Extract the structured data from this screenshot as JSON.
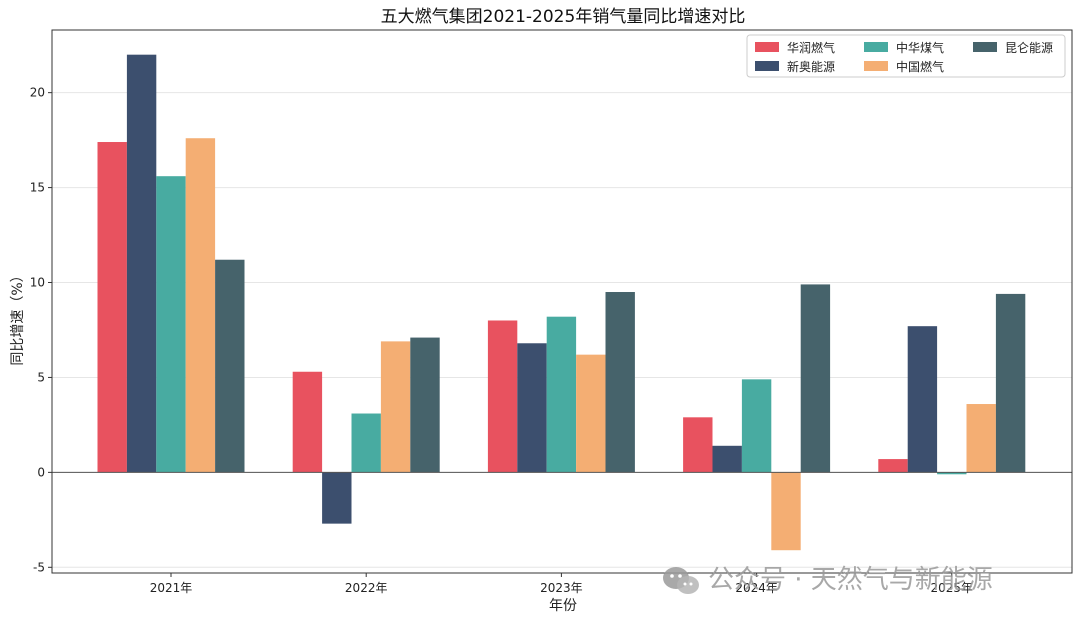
{
  "chart_data": {
    "type": "bar",
    "title": "五大燃气集团2021-2025年销气量同比增速对比",
    "xlabel": "年份",
    "ylabel": "同比增速（%）",
    "categories": [
      "2021年",
      "2022年",
      "2023年",
      "2024年",
      "2025年"
    ],
    "series": [
      {
        "name": "华润燃气",
        "color": "#e8525f",
        "values": [
          17.4,
          5.3,
          8.0,
          2.9,
          0.7
        ]
      },
      {
        "name": "新奥能源",
        "color": "#3c4f6e",
        "values": [
          22.0,
          -2.7,
          6.8,
          1.4,
          7.7
        ]
      },
      {
        "name": "中华煤气",
        "color": "#48aba1",
        "values": [
          15.6,
          3.1,
          8.2,
          4.9,
          -0.1
        ]
      },
      {
        "name": "中国燃气",
        "color": "#f4ae73",
        "values": [
          17.6,
          6.9,
          6.2,
          -4.1,
          3.6
        ]
      },
      {
        "name": "昆仑能源",
        "color": "#46636b",
        "values": [
          11.2,
          7.1,
          9.5,
          9.9,
          9.4
        ]
      }
    ],
    "ylim": [
      -5.3,
      23.3
    ],
    "yticks": [
      -5,
      0,
      5,
      10,
      15,
      20
    ],
    "grid": "horizontal",
    "legend_position": "top-right",
    "legend_columns": 3
  },
  "watermark": {
    "icon": "wechat-icon",
    "text": "公众号 · 天然气与新能源"
  }
}
